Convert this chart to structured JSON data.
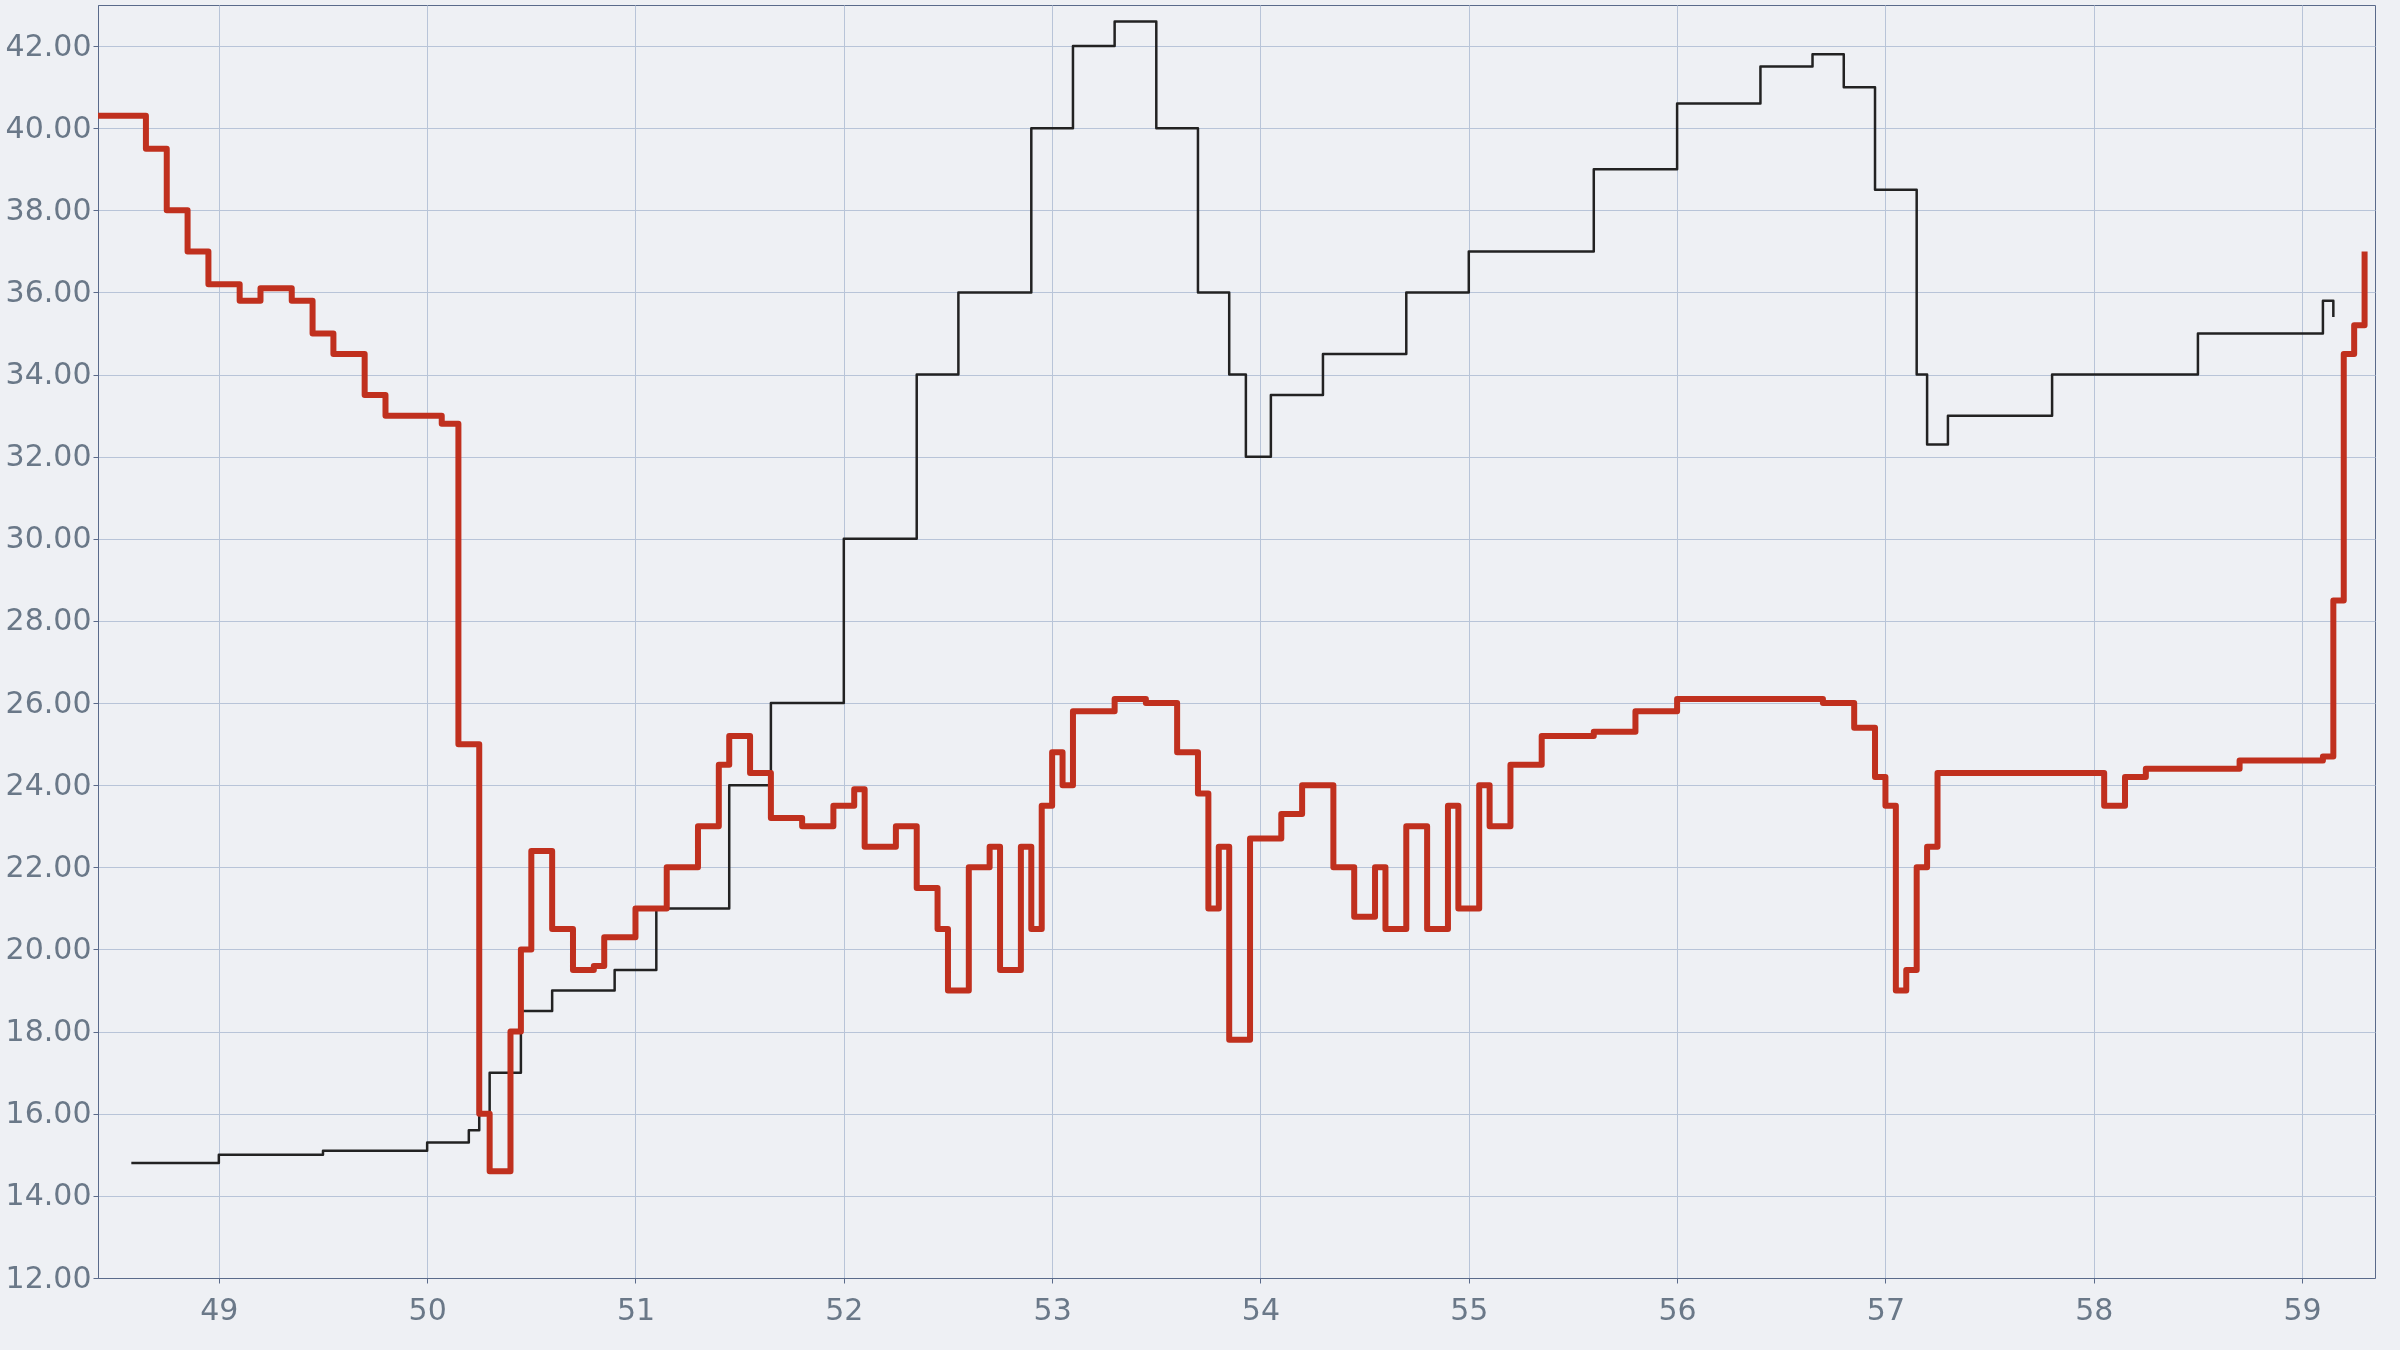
{
  "chart_data": {
    "type": "step",
    "xlim": [
      48.42,
      59.35
    ],
    "ylim": [
      12,
      43
    ],
    "xticks": [
      49,
      50,
      51,
      52,
      53,
      54,
      55,
      56,
      57,
      58,
      59
    ],
    "yticks": [
      {
        "value": 12,
        "label": "12.00"
      },
      {
        "value": 14,
        "label": "14.00"
      },
      {
        "value": 16,
        "label": "16.00"
      },
      {
        "value": 18,
        "label": "18.00"
      },
      {
        "value": 20,
        "label": "20.00"
      },
      {
        "value": 22,
        "label": "22.00"
      },
      {
        "value": 24,
        "label": "24.00"
      },
      {
        "value": 26,
        "label": "26.00"
      },
      {
        "value": 28,
        "label": "28.00"
      },
      {
        "value": 30,
        "label": "30.00"
      },
      {
        "value": 32,
        "label": "32.00"
      },
      {
        "value": 34,
        "label": "34.00"
      },
      {
        "value": 36,
        "label": "36.00"
      },
      {
        "value": 38,
        "label": "38.00"
      },
      {
        "value": 40,
        "label": "40.00"
      },
      {
        "value": 42,
        "label": "42.00"
      }
    ],
    "grid": true,
    "marker": "none",
    "line_style": "solid",
    "series": [
      {
        "color": "#222222",
        "x": [
          48.58,
          48.8,
          49.0,
          49.5,
          50.0,
          50.2,
          50.25,
          50.3,
          50.45,
          50.6,
          50.9,
          51.1,
          51.45,
          51.65,
          52.0,
          52.35,
          52.55,
          52.9,
          53.1,
          53.3,
          53.5,
          53.7,
          53.85,
          53.93,
          54.0,
          54.05,
          54.3,
          54.7,
          55.0,
          55.6,
          56.0,
          56.4,
          56.65,
          56.8,
          56.95,
          57.15,
          57.2,
          57.3,
          57.8,
          58.5,
          59.1,
          59.15
        ],
        "values": [
          14.8,
          14.8,
          15,
          15.1,
          15.3,
          15.6,
          16,
          17,
          18.5,
          19,
          19.5,
          21,
          24,
          26,
          30,
          34,
          36,
          40,
          42,
          42.6,
          40,
          36,
          34,
          32,
          32,
          33.5,
          34.5,
          36,
          37,
          39,
          40.6,
          41.5,
          41.8,
          41,
          38.5,
          34,
          32.3,
          33,
          34,
          35,
          35.8,
          35.4
        ]
      },
      {
        "color": "#c0301e",
        "x": [
          48.42,
          48.6,
          48.65,
          48.75,
          48.85,
          48.95,
          49.1,
          49.2,
          49.35,
          49.45,
          49.55,
          49.7,
          49.8,
          50.07,
          50.15,
          50.25,
          50.3,
          50.35,
          50.4,
          50.45,
          50.5,
          50.55,
          50.6,
          50.7,
          50.8,
          50.85,
          51.0,
          51.15,
          51.3,
          51.4,
          51.45,
          51.55,
          51.65,
          51.8,
          51.95,
          52.05,
          52.1,
          52.25,
          52.35,
          52.45,
          52.5,
          52.6,
          52.7,
          52.75,
          52.85,
          52.9,
          52.95,
          53.0,
          53.05,
          53.1,
          53.3,
          53.45,
          53.6,
          53.7,
          53.75,
          53.8,
          53.85,
          53.9,
          53.95,
          54.1,
          54.2,
          54.35,
          54.45,
          54.55,
          54.6,
          54.7,
          54.8,
          54.9,
          54.95,
          55.05,
          55.1,
          55.2,
          55.35,
          55.6,
          55.8,
          56.0,
          56.5,
          56.7,
          56.85,
          56.95,
          57.0,
          57.05,
          57.1,
          57.15,
          57.2,
          57.25,
          58.0,
          58.05,
          58.15,
          58.25,
          58.7,
          59.1,
          59.15,
          59.2,
          59.25,
          59.3
        ],
        "values": [
          40.3,
          40.3,
          39.5,
          38,
          37,
          36.2,
          35.8,
          36.1,
          35.8,
          35,
          34.5,
          33.5,
          33,
          32.8,
          25,
          16,
          14.6,
          14.6,
          18,
          20,
          22.4,
          22.4,
          20.5,
          19.5,
          19.6,
          20.3,
          21,
          22,
          23,
          24.5,
          25.2,
          24.3,
          23.2,
          23,
          23.5,
          23.9,
          22.5,
          23,
          21.5,
          20.5,
          19,
          22,
          22.5,
          19.5,
          22.5,
          20.5,
          23.5,
          24.8,
          24,
          25.8,
          26.1,
          26,
          24.8,
          23.8,
          21,
          22.5,
          17.8,
          17.8,
          22.7,
          23.3,
          24,
          22,
          20.8,
          22,
          20.5,
          23,
          20.5,
          23.5,
          21,
          24,
          23,
          24.5,
          25.2,
          25.3,
          25.8,
          26.1,
          26.1,
          26,
          25.4,
          24.2,
          23.5,
          19,
          19.5,
          22,
          22.5,
          24.3,
          24.3,
          23.5,
          24.2,
          24.4,
          24.6,
          24.7,
          28.5,
          34.5,
          35.2,
          37
        ]
      }
    ]
  }
}
